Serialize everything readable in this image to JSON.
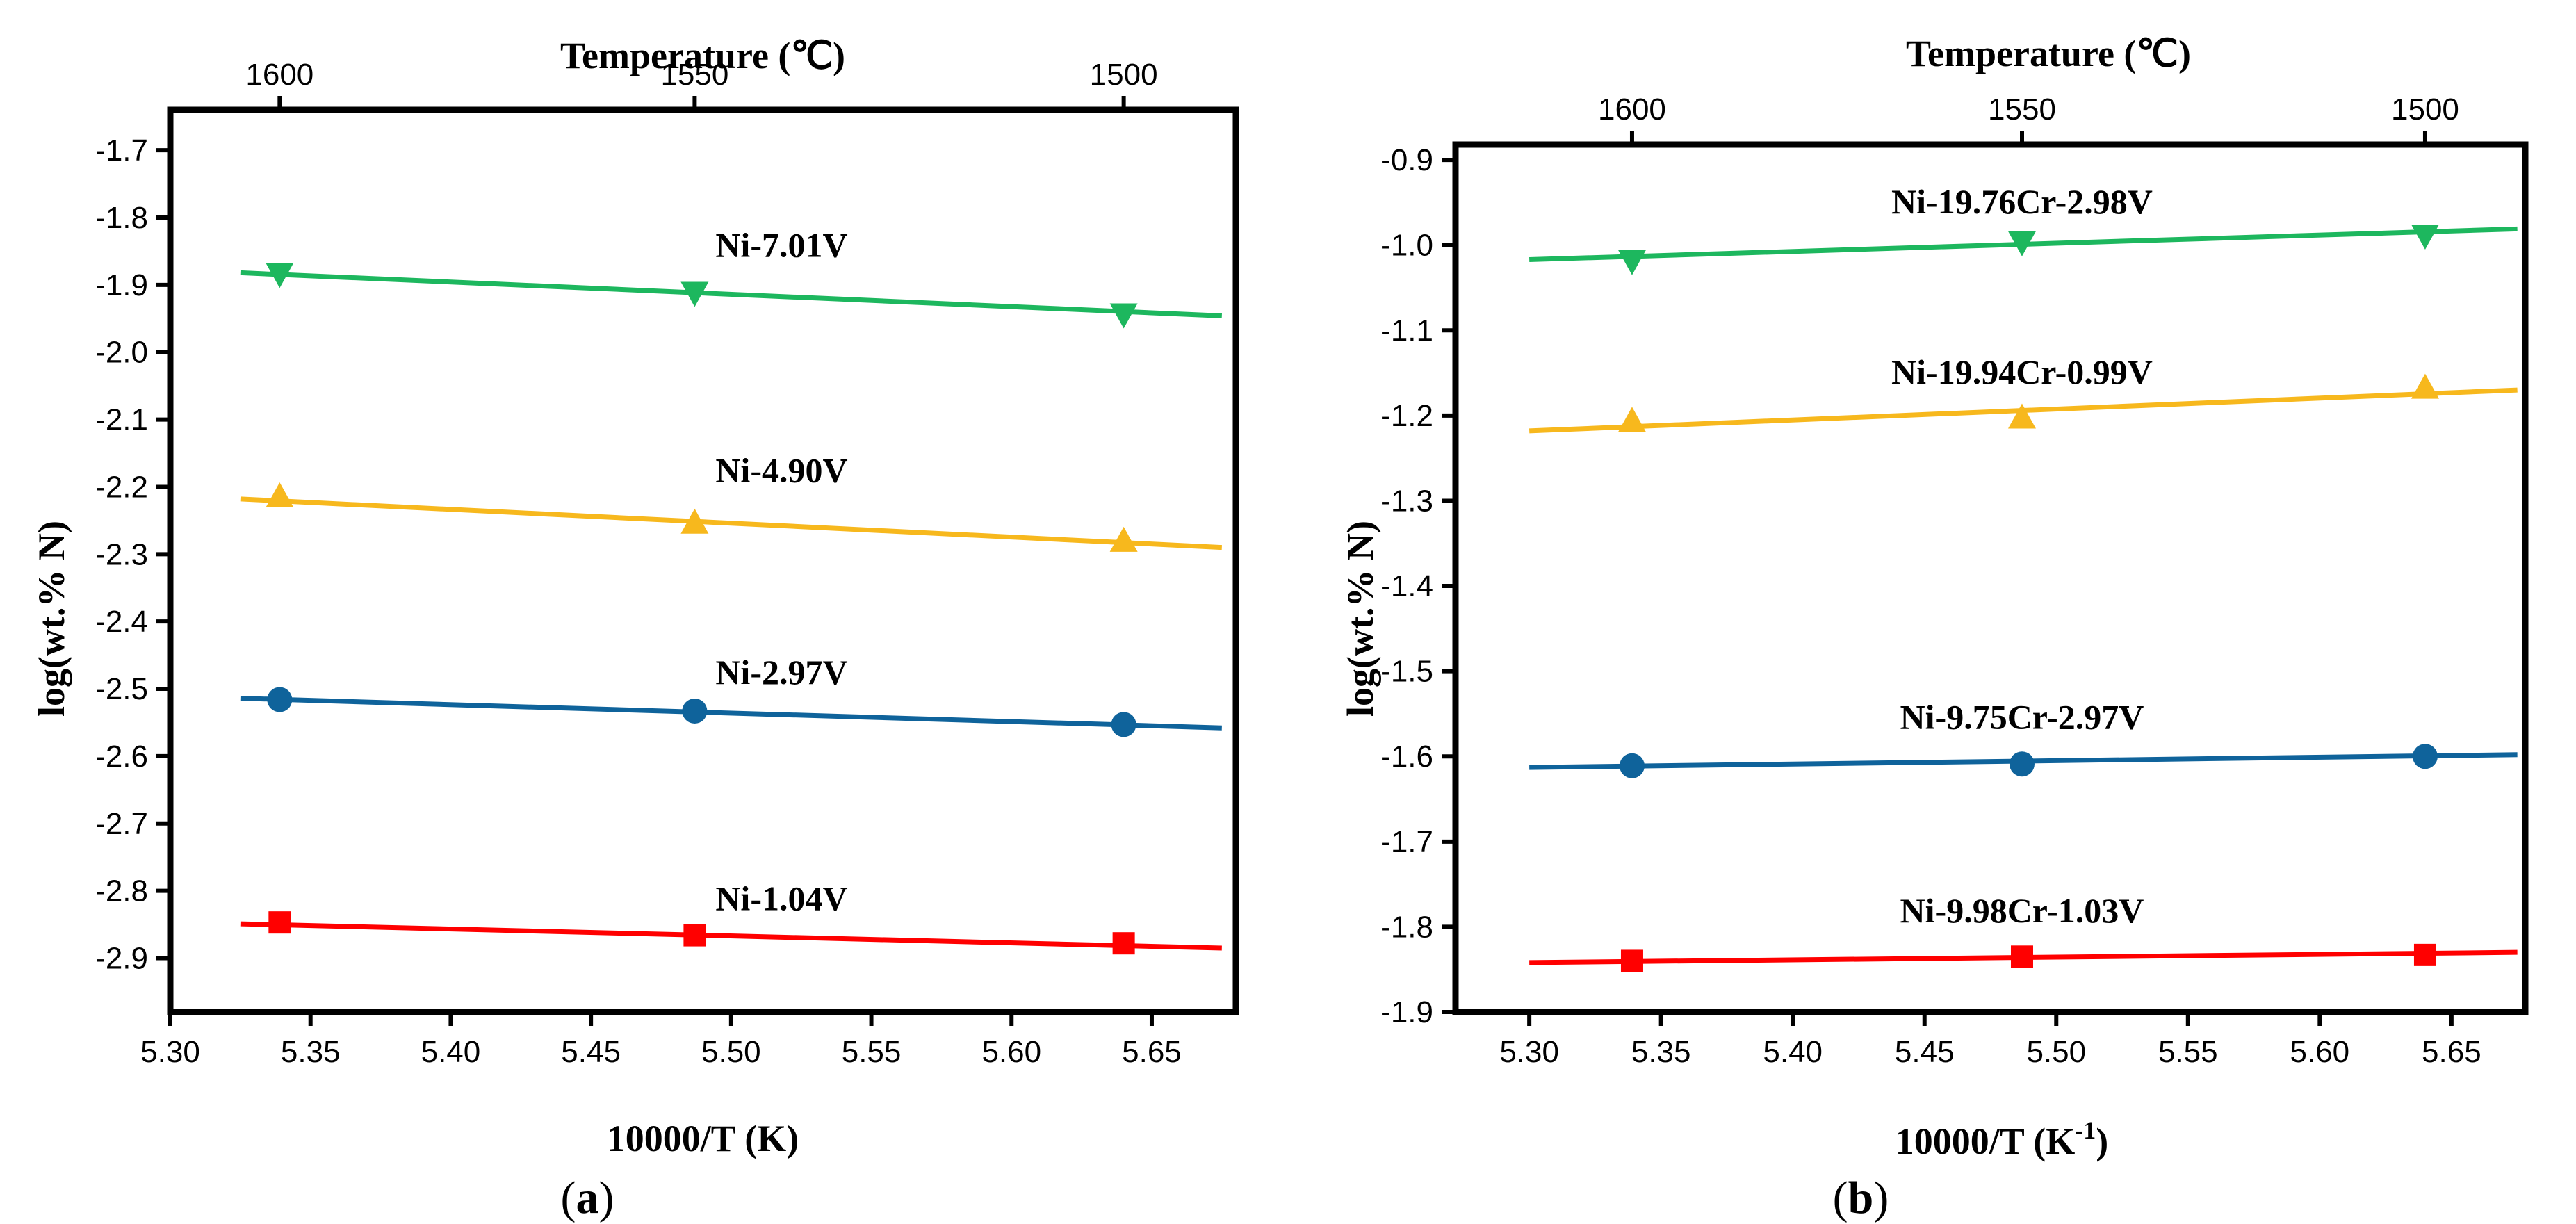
{
  "chart_data": [
    {
      "type": "scatter",
      "panel_label": "a",
      "x_label": "10000/T (K)",
      "x_label_sup": "",
      "y_label": "log(wt.% N)",
      "top_axis_label": "Temperature (℃)",
      "xlim": [
        5.3,
        5.68
      ],
      "ylim": [
        -2.98,
        -1.64
      ],
      "x_ticks": [
        5.3,
        5.35,
        5.4,
        5.45,
        5.5,
        5.55,
        5.6,
        5.65
      ],
      "x_tick_labels": [
        "5.30",
        "5.35",
        "5.40",
        "5.45",
        "5.50",
        "5.55",
        "5.60",
        "5.65"
      ],
      "y_ticks": [
        -2.9,
        -2.8,
        -2.7,
        -2.6,
        -2.5,
        -2.4,
        -2.3,
        -2.2,
        -2.1,
        -2.0,
        -1.9,
        -1.8,
        -1.7
      ],
      "y_tick_labels": [
        "-2.9",
        "-2.8",
        "-2.7",
        "-2.6",
        "-2.5",
        "-2.4",
        "-2.3",
        "-2.2",
        "-2.1",
        "-2.0",
        "-1.9",
        "-1.8",
        "-1.7"
      ],
      "top_ticks": [
        {
          "x": 5.339,
          "label": "1600"
        },
        {
          "x": 5.487,
          "label": "1550"
        },
        {
          "x": 5.64,
          "label": "1500"
        }
      ],
      "line_x_range": [
        5.325,
        5.675
      ],
      "grid": false,
      "series": [
        {
          "name": "Ni-7.01V",
          "color": "#1db75e",
          "marker": "triangle-down",
          "x": [
            5.339,
            5.487,
            5.64
          ],
          "y": [
            -1.883,
            -1.911,
            -1.943
          ],
          "fit": [
            -1.882,
            -1.946
          ],
          "label_pos": [
            5.518,
            -1.84
          ]
        },
        {
          "name": "Ni-4.90V",
          "color": "#f7b81d",
          "marker": "triangle-up",
          "x": [
            5.339,
            5.487,
            5.64
          ],
          "y": [
            -2.215,
            -2.254,
            -2.281
          ],
          "fit": [
            -2.218,
            -2.29
          ],
          "label_pos": [
            5.518,
            -2.174
          ]
        },
        {
          "name": "Ni-2.97V",
          "color": "#0f639b",
          "marker": "circle",
          "x": [
            5.339,
            5.487,
            5.64
          ],
          "y": [
            -2.516,
            -2.533,
            -2.553
          ],
          "fit": [
            -2.514,
            -2.558
          ],
          "label_pos": [
            5.518,
            -2.474
          ]
        },
        {
          "name": "Ni-1.04V",
          "color": "#ff0000",
          "marker": "square",
          "x": [
            5.339,
            5.487,
            5.64
          ],
          "y": [
            -2.847,
            -2.866,
            -2.878
          ],
          "fit": [
            -2.849,
            -2.885
          ],
          "label_pos": [
            5.518,
            -2.81
          ]
        }
      ]
    },
    {
      "type": "scatter",
      "panel_label": "b",
      "x_label": "10000/T (K",
      "x_label_sup": "-1",
      "x_label_close": ")",
      "y_label": "log(wt.% N)",
      "top_axis_label": "Temperature (℃)",
      "xlim": [
        5.272,
        5.678
      ],
      "ylim": [
        -1.9,
        -0.882
      ],
      "x_ticks": [
        5.3,
        5.35,
        5.4,
        5.45,
        5.5,
        5.55,
        5.6,
        5.65
      ],
      "x_tick_labels": [
        "5.30",
        "5.35",
        "5.40",
        "5.45",
        "5.50",
        "5.55",
        "5.60",
        "5.65"
      ],
      "y_ticks": [
        -1.9,
        -1.8,
        -1.7,
        -1.6,
        -1.5,
        -1.4,
        -1.3,
        -1.2,
        -1.1,
        -1.0,
        -0.9
      ],
      "y_tick_labels": [
        "-1.9",
        "-1.8",
        "-1.7",
        "-1.6",
        "-1.5",
        "-1.4",
        "-1.3",
        "-1.2",
        "-1.1",
        "-1.0",
        "-0.9"
      ],
      "top_ticks": [
        {
          "x": 5.339,
          "label": "1600"
        },
        {
          "x": 5.487,
          "label": "1550"
        },
        {
          "x": 5.64,
          "label": "1500"
        }
      ],
      "line_x_range": [
        5.3,
        5.675
      ],
      "grid": false,
      "series": [
        {
          "name": "Ni-19.76Cr-2.98V",
          "color": "#1db75e",
          "marker": "triangle-down",
          "x": [
            5.339,
            5.487,
            5.64
          ],
          "y": [
            -1.018,
            -0.996,
            -0.988
          ],
          "fit": [
            -1.017,
            -0.981
          ],
          "label_pos": [
            5.487,
            -0.948
          ]
        },
        {
          "name": "Ni-19.94Cr-0.99V",
          "color": "#f7b81d",
          "marker": "triangle-up",
          "x": [
            5.339,
            5.487,
            5.64
          ],
          "y": [
            -1.207,
            -1.203,
            -1.168
          ],
          "fit": [
            -1.218,
            -1.17
          ],
          "label_pos": [
            5.487,
            -1.148
          ]
        },
        {
          "name": "Ni-9.75Cr-2.97V",
          "color": "#0f639b",
          "marker": "circle",
          "x": [
            5.339,
            5.487,
            5.64
          ],
          "y": [
            -1.611,
            -1.609,
            -1.6
          ],
          "fit": [
            -1.613,
            -1.598
          ],
          "label_pos": [
            5.487,
            -1.553
          ]
        },
        {
          "name": "Ni-9.98Cr-1.03V",
          "color": "#ff0000",
          "marker": "square",
          "x": [
            5.339,
            5.487,
            5.64
          ],
          "y": [
            -1.84,
            -1.835,
            -1.833
          ],
          "fit": [
            -1.842,
            -1.83
          ],
          "label_pos": [
            5.487,
            -1.78
          ]
        }
      ]
    }
  ]
}
